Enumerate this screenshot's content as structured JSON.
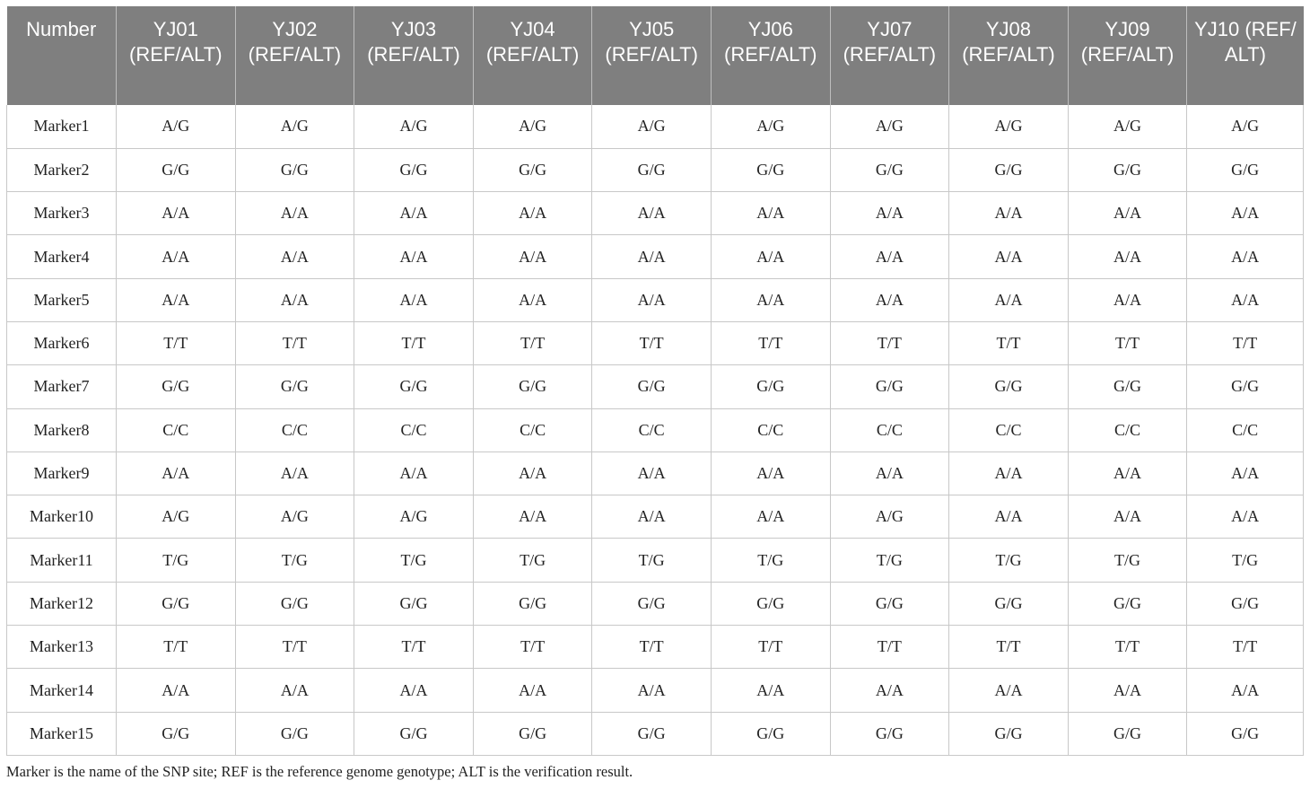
{
  "table": {
    "headers": [
      "Number",
      "YJ01 (REF/ALT)",
      "YJ02 (REF/ALT)",
      "YJ03 (REF/ALT)",
      "YJ04 (REF/ALT)",
      "YJ05 (REF/ALT)",
      "YJ06 (REF/ALT)",
      "YJ07 (REF/ALT)",
      "YJ08 (REF/ALT)",
      "YJ09 (REF/ALT)",
      "YJ10 (REF/ ALT)"
    ],
    "rows": [
      [
        "Marker1",
        "A/G",
        "A/G",
        "A/G",
        "A/G",
        "A/G",
        "A/G",
        "A/G",
        "A/G",
        "A/G",
        "A/G"
      ],
      [
        "Marker2",
        "G/G",
        "G/G",
        "G/G",
        "G/G",
        "G/G",
        "G/G",
        "G/G",
        "G/G",
        "G/G",
        "G/G"
      ],
      [
        "Marker3",
        "A/A",
        "A/A",
        "A/A",
        "A/A",
        "A/A",
        "A/A",
        "A/A",
        "A/A",
        "A/A",
        "A/A"
      ],
      [
        "Marker4",
        "A/A",
        "A/A",
        "A/A",
        "A/A",
        "A/A",
        "A/A",
        "A/A",
        "A/A",
        "A/A",
        "A/A"
      ],
      [
        "Marker5",
        "A/A",
        "A/A",
        "A/A",
        "A/A",
        "A/A",
        "A/A",
        "A/A",
        "A/A",
        "A/A",
        "A/A"
      ],
      [
        "Marker6",
        "T/T",
        "T/T",
        "T/T",
        "T/T",
        "T/T",
        "T/T",
        "T/T",
        "T/T",
        "T/T",
        "T/T"
      ],
      [
        "Marker7",
        "G/G",
        "G/G",
        "G/G",
        "G/G",
        "G/G",
        "G/G",
        "G/G",
        "G/G",
        "G/G",
        "G/G"
      ],
      [
        "Marker8",
        "C/C",
        "C/C",
        "C/C",
        "C/C",
        "C/C",
        "C/C",
        "C/C",
        "C/C",
        "C/C",
        "C/C"
      ],
      [
        "Marker9",
        "A/A",
        "A/A",
        "A/A",
        "A/A",
        "A/A",
        "A/A",
        "A/A",
        "A/A",
        "A/A",
        "A/A"
      ],
      [
        "Marker10",
        "A/G",
        "A/G",
        "A/G",
        "A/A",
        "A/A",
        "A/A",
        "A/G",
        "A/A",
        "A/A",
        "A/A"
      ],
      [
        "Marker11",
        "T/G",
        "T/G",
        "T/G",
        "T/G",
        "T/G",
        "T/G",
        "T/G",
        "T/G",
        "T/G",
        "T/G"
      ],
      [
        "Marker12",
        "G/G",
        "G/G",
        "G/G",
        "G/G",
        "G/G",
        "G/G",
        "G/G",
        "G/G",
        "G/G",
        "G/G"
      ],
      [
        "Marker13",
        "T/T",
        "T/T",
        "T/T",
        "T/T",
        "T/T",
        "T/T",
        "T/T",
        "T/T",
        "T/T",
        "T/T"
      ],
      [
        "Marker14",
        "A/A",
        "A/A",
        "A/A",
        "A/A",
        "A/A",
        "A/A",
        "A/A",
        "A/A",
        "A/A",
        "A/A"
      ],
      [
        "Marker15",
        "G/G",
        "G/G",
        "G/G",
        "G/G",
        "G/G",
        "G/G",
        "G/G",
        "G/G",
        "G/G",
        "G/G"
      ]
    ]
  },
  "footnote": "Marker is the name of the SNP site; REF is the reference genome genotype; ALT is the verification result.",
  "colors": {
    "header_bg": "#7f7f7f",
    "header_text": "#ffffff",
    "grid_line": "#c8c8c8",
    "body_text": "#222222"
  }
}
